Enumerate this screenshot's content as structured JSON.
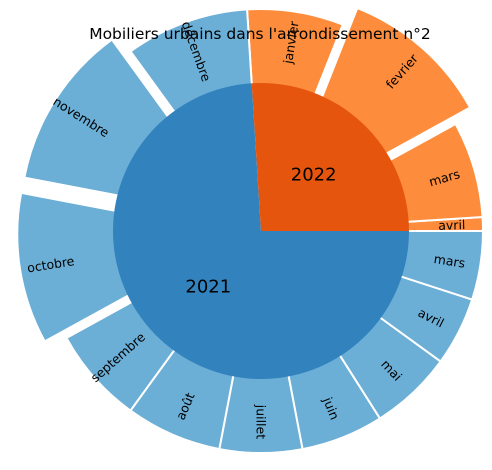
{
  "chart_data": {
    "type": "pie",
    "subtype": "sunburst",
    "title": "Mobiliers urbains dans l'arrondissement n°2",
    "inner": [
      {
        "name": "2021",
        "value": 74,
        "color": "#3282bd"
      },
      {
        "name": "2022",
        "value": 26,
        "color": "#e6550d"
      }
    ],
    "outer": [
      {
        "name": "avril",
        "year": "2022",
        "value": 1,
        "color": "#fd8d3c",
        "explode": 0
      },
      {
        "name": "mars",
        "year": "2022",
        "value": 7,
        "color": "#fd8d3c",
        "explode": 0
      },
      {
        "name": "fevrier",
        "year": "2022",
        "value": 11,
        "color": "#fd8d3c",
        "explode": 1
      },
      {
        "name": "janvier",
        "year": "2022",
        "value": 7,
        "color": "#fd8d3c",
        "explode": 0
      },
      {
        "name": "décembre",
        "year": "2021",
        "value": 9,
        "color": "#6baed6",
        "explode": 0
      },
      {
        "name": "novembre",
        "year": "2021",
        "value": 12,
        "color": "#6baed6",
        "explode": 1
      },
      {
        "name": "octobre",
        "year": "2021",
        "value": 11,
        "color": "#6baed6",
        "explode": 1
      },
      {
        "name": "septembre",
        "year": "2021",
        "value": 7,
        "color": "#6baed6",
        "explode": 0
      },
      {
        "name": "août",
        "year": "2021",
        "value": 7,
        "color": "#6baed6",
        "explode": 0
      },
      {
        "name": "juillet",
        "year": "2021",
        "value": 6,
        "color": "#6baed6",
        "explode": 0
      },
      {
        "name": "juin",
        "year": "2021",
        "value": 6,
        "color": "#6baed6",
        "explode": 0
      },
      {
        "name": "mai",
        "year": "2021",
        "value": 6,
        "color": "#6baed6",
        "explode": 0
      },
      {
        "name": "avril",
        "year": "2021",
        "value": 5,
        "color": "#6baed6",
        "explode": 0
      },
      {
        "name": "mars",
        "year": "2021",
        "value": 5,
        "color": "#6baed6",
        "explode": 0
      }
    ]
  }
}
